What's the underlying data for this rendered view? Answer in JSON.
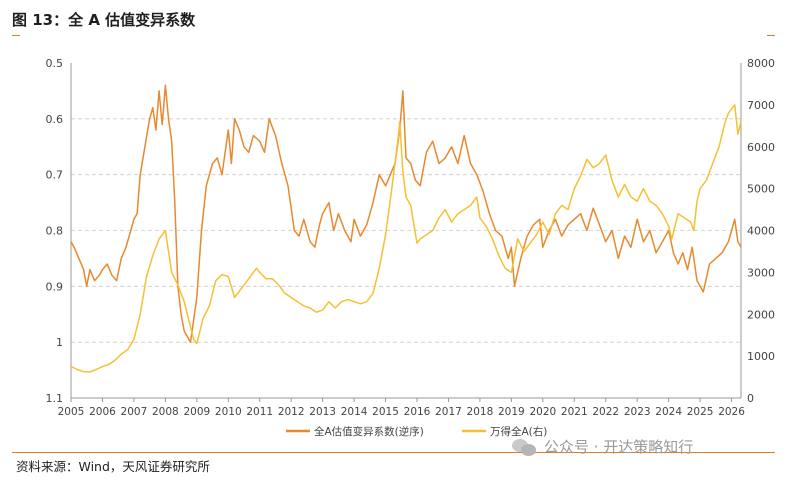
{
  "figure": {
    "title": "图 13：全 A 估值变异系数",
    "source": "资料来源：Wind，天风证券研究所",
    "watermark": "公众号 · 开达策略知行",
    "watermark_icon": "wechat-icon"
  },
  "colors": {
    "series1": "#e8892f",
    "series2": "#f5c033",
    "accent": "#e07b22",
    "grid": "#cccccc",
    "axis": "#444444"
  },
  "chart_data": {
    "type": "line",
    "xlim": [
      2005.0,
      2026.3
    ],
    "x_ticks": [
      "2005",
      "2006",
      "2007",
      "2008",
      "2009",
      "2010",
      "2011",
      "2012",
      "2013",
      "2014",
      "2015",
      "2016",
      "2017",
      "2018",
      "2019",
      "2020",
      "2021",
      "2022",
      "2023",
      "2024",
      "2025",
      "2026"
    ],
    "y_left": {
      "lim": [
        0.5,
        1.1
      ],
      "inverted": true,
      "ticks": [
        "0.5",
        "0.6",
        "0.7",
        "0.8",
        "0.9",
        "1",
        "1.1"
      ]
    },
    "y_right": {
      "lim": [
        0,
        8000
      ],
      "ticks": [
        "0",
        "1000",
        "2000",
        "3000",
        "4000",
        "5000",
        "6000",
        "7000",
        "8000"
      ]
    },
    "grid": "horizontal dashed",
    "legend_position": "bottom",
    "series": [
      {
        "name": "全A估值变异系数(逆序)",
        "axis": "left",
        "x": [
          2005.0,
          2005.1,
          2005.25,
          2005.4,
          2005.5,
          2005.6,
          2005.75,
          2005.9,
          2006.0,
          2006.15,
          2006.3,
          2006.45,
          2006.6,
          2006.75,
          2006.9,
          2007.0,
          2007.1,
          2007.2,
          2007.35,
          2007.5,
          2007.6,
          2007.7,
          2007.8,
          2007.9,
          2008.0,
          2008.1,
          2008.2,
          2008.3,
          2008.4,
          2008.5,
          2008.6,
          2008.7,
          2008.8,
          2008.9,
          2009.0,
          2009.15,
          2009.3,
          2009.5,
          2009.65,
          2009.8,
          2010.0,
          2010.1,
          2010.2,
          2010.35,
          2010.5,
          2010.65,
          2010.8,
          2011.0,
          2011.15,
          2011.3,
          2011.5,
          2011.7,
          2011.9,
          2012.0,
          2012.1,
          2012.25,
          2012.4,
          2012.6,
          2012.75,
          2012.9,
          2013.0,
          2013.2,
          2013.35,
          2013.5,
          2013.7,
          2013.9,
          2014.0,
          2014.2,
          2014.4,
          2014.6,
          2014.8,
          2015.0,
          2015.15,
          2015.3,
          2015.45,
          2015.55,
          2015.65,
          2015.8,
          2015.95,
          2016.1,
          2016.3,
          2016.5,
          2016.7,
          2016.9,
          2017.1,
          2017.3,
          2017.5,
          2017.7,
          2017.9,
          2018.1,
          2018.3,
          2018.5,
          2018.7,
          2018.9,
          2019.0,
          2019.1,
          2019.3,
          2019.5,
          2019.7,
          2019.9,
          2020.0,
          2020.2,
          2020.4,
          2020.6,
          2020.8,
          2021.0,
          2021.2,
          2021.4,
          2021.6,
          2021.8,
          2022.0,
          2022.2,
          2022.4,
          2022.6,
          2022.8,
          2023.0,
          2023.2,
          2023.4,
          2023.6,
          2023.8,
          2024.0,
          2024.15,
          2024.3,
          2024.45,
          2024.6,
          2024.75,
          2024.9,
          2025.1,
          2025.3,
          2025.5,
          2025.7,
          2025.9,
          2026.0,
          2026.1,
          2026.2,
          2026.3
        ],
        "y": [
          0.82,
          0.83,
          0.85,
          0.87,
          0.9,
          0.87,
          0.89,
          0.88,
          0.87,
          0.86,
          0.88,
          0.89,
          0.85,
          0.83,
          0.8,
          0.78,
          0.77,
          0.7,
          0.65,
          0.6,
          0.58,
          0.62,
          0.55,
          0.61,
          0.54,
          0.6,
          0.64,
          0.75,
          0.9,
          0.95,
          0.98,
          0.99,
          1.0,
          0.96,
          0.92,
          0.8,
          0.72,
          0.68,
          0.67,
          0.7,
          0.62,
          0.68,
          0.6,
          0.62,
          0.65,
          0.66,
          0.63,
          0.64,
          0.66,
          0.6,
          0.63,
          0.68,
          0.72,
          0.76,
          0.8,
          0.81,
          0.78,
          0.82,
          0.83,
          0.79,
          0.77,
          0.75,
          0.8,
          0.77,
          0.8,
          0.82,
          0.78,
          0.81,
          0.79,
          0.75,
          0.7,
          0.72,
          0.7,
          0.68,
          0.62,
          0.55,
          0.67,
          0.68,
          0.71,
          0.72,
          0.66,
          0.64,
          0.68,
          0.67,
          0.65,
          0.68,
          0.63,
          0.68,
          0.7,
          0.73,
          0.77,
          0.8,
          0.81,
          0.85,
          0.83,
          0.9,
          0.85,
          0.81,
          0.79,
          0.78,
          0.83,
          0.8,
          0.78,
          0.81,
          0.79,
          0.78,
          0.77,
          0.8,
          0.76,
          0.79,
          0.82,
          0.8,
          0.85,
          0.81,
          0.83,
          0.78,
          0.82,
          0.8,
          0.84,
          0.82,
          0.8,
          0.84,
          0.86,
          0.84,
          0.87,
          0.83,
          0.89,
          0.91,
          0.86,
          0.85,
          0.84,
          0.82,
          0.8,
          0.78,
          0.82,
          0.83
        ]
      },
      {
        "name": "万得全A(右)",
        "axis": "right",
        "x": [
          2005.0,
          2005.2,
          2005.4,
          2005.6,
          2005.8,
          2006.0,
          2006.2,
          2006.4,
          2006.6,
          2006.8,
          2007.0,
          2007.2,
          2007.4,
          2007.6,
          2007.8,
          2008.0,
          2008.1,
          2008.2,
          2008.4,
          2008.6,
          2008.8,
          2008.9,
          2009.0,
          2009.2,
          2009.4,
          2009.6,
          2009.8,
          2010.0,
          2010.2,
          2010.4,
          2010.6,
          2010.8,
          2010.9,
          2011.0,
          2011.2,
          2011.4,
          2011.6,
          2011.8,
          2012.0,
          2012.2,
          2012.4,
          2012.6,
          2012.8,
          2013.0,
          2013.2,
          2013.4,
          2013.6,
          2013.8,
          2014.0,
          2014.2,
          2014.4,
          2014.6,
          2014.8,
          2015.0,
          2015.2,
          2015.4,
          2015.45,
          2015.55,
          2015.65,
          2015.8,
          2016.0,
          2016.1,
          2016.3,
          2016.5,
          2016.7,
          2016.9,
          2017.1,
          2017.3,
          2017.5,
          2017.7,
          2017.9,
          2018.0,
          2018.2,
          2018.4,
          2018.6,
          2018.8,
          2019.0,
          2019.2,
          2019.4,
          2019.6,
          2019.8,
          2020.0,
          2020.2,
          2020.4,
          2020.6,
          2020.8,
          2021.0,
          2021.2,
          2021.4,
          2021.6,
          2021.8,
          2022.0,
          2022.2,
          2022.4,
          2022.6,
          2022.8,
          2023.0,
          2023.2,
          2023.4,
          2023.6,
          2023.8,
          2024.0,
          2024.1,
          2024.3,
          2024.5,
          2024.7,
          2024.8,
          2024.9,
          2025.0,
          2025.2,
          2025.4,
          2025.6,
          2025.8,
          2025.9,
          2026.0,
          2026.1,
          2026.2,
          2026.3
        ],
        "y": [
          750,
          680,
          630,
          620,
          680,
          750,
          800,
          900,
          1050,
          1150,
          1400,
          2000,
          2900,
          3400,
          3800,
          4000,
          3500,
          3000,
          2700,
          2300,
          1700,
          1400,
          1300,
          1900,
          2200,
          2800,
          2950,
          2900,
          2400,
          2600,
          2800,
          3000,
          3100,
          3000,
          2850,
          2850,
          2700,
          2500,
          2400,
          2300,
          2200,
          2150,
          2050,
          2100,
          2300,
          2150,
          2300,
          2350,
          2300,
          2250,
          2300,
          2500,
          3100,
          3900,
          5000,
          6200,
          6600,
          5400,
          4800,
          4600,
          3700,
          3800,
          3900,
          4000,
          4300,
          4500,
          4200,
          4400,
          4500,
          4600,
          4800,
          4300,
          4100,
          3800,
          3400,
          3100,
          3000,
          3800,
          3500,
          3700,
          3900,
          4200,
          3900,
          4400,
          4600,
          4500,
          5000,
          5300,
          5700,
          5500,
          5600,
          5800,
          5200,
          4800,
          5100,
          4800,
          4700,
          5000,
          4700,
          4600,
          4400,
          4100,
          3800,
          4400,
          4300,
          4200,
          4000,
          4700,
          5000,
          5200,
          5600,
          6000,
          6600,
          6800,
          6900,
          7000,
          6300,
          6600
        ]
      }
    ]
  }
}
